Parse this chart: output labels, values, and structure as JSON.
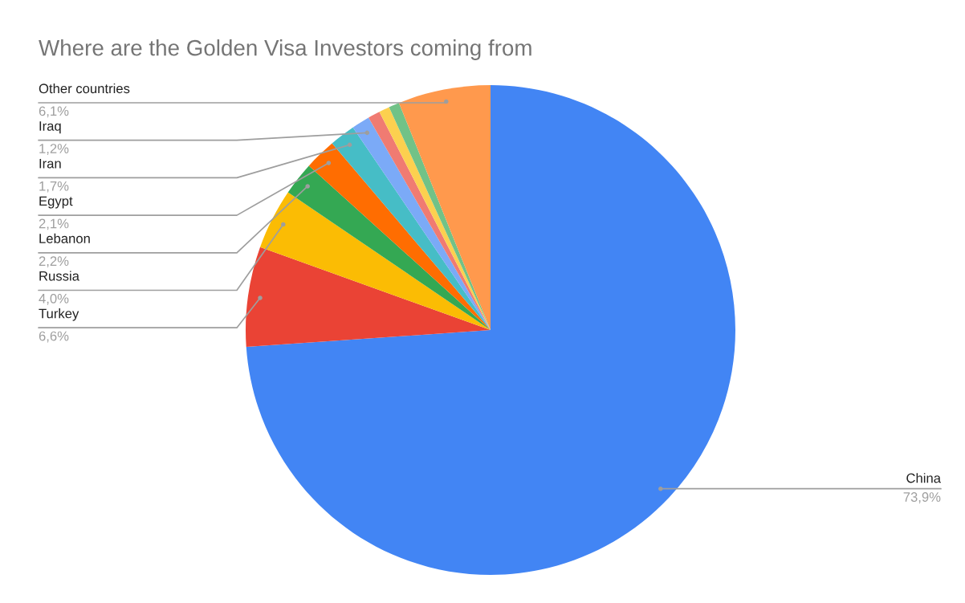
{
  "chart_data": {
    "type": "pie",
    "title": "Where are the Golden Visa Investors coming from",
    "categories": [
      "China",
      "Turkey",
      "Russia",
      "Lebanon",
      "Egypt",
      "Iran",
      "Iraq",
      null,
      null,
      null,
      "Other countries"
    ],
    "values": [
      73.9,
      6.6,
      4.0,
      2.2,
      2.1,
      1.7,
      1.2,
      0.8,
      0.7,
      0.7,
      6.1
    ],
    "value_labels": [
      "73,9%",
      "6,6%",
      "4,0%",
      "2,2%",
      "2,1%",
      "1,7%",
      "1,2%",
      null,
      null,
      null,
      "6,1%"
    ],
    "colors": [
      "#4285f4",
      "#ea4335",
      "#fbbc04",
      "#34a853",
      "#ff6d01",
      "#46bdc6",
      "#7baaf7",
      "#f07b72",
      "#fcd04f",
      "#71c287",
      "#ff994d"
    ]
  }
}
